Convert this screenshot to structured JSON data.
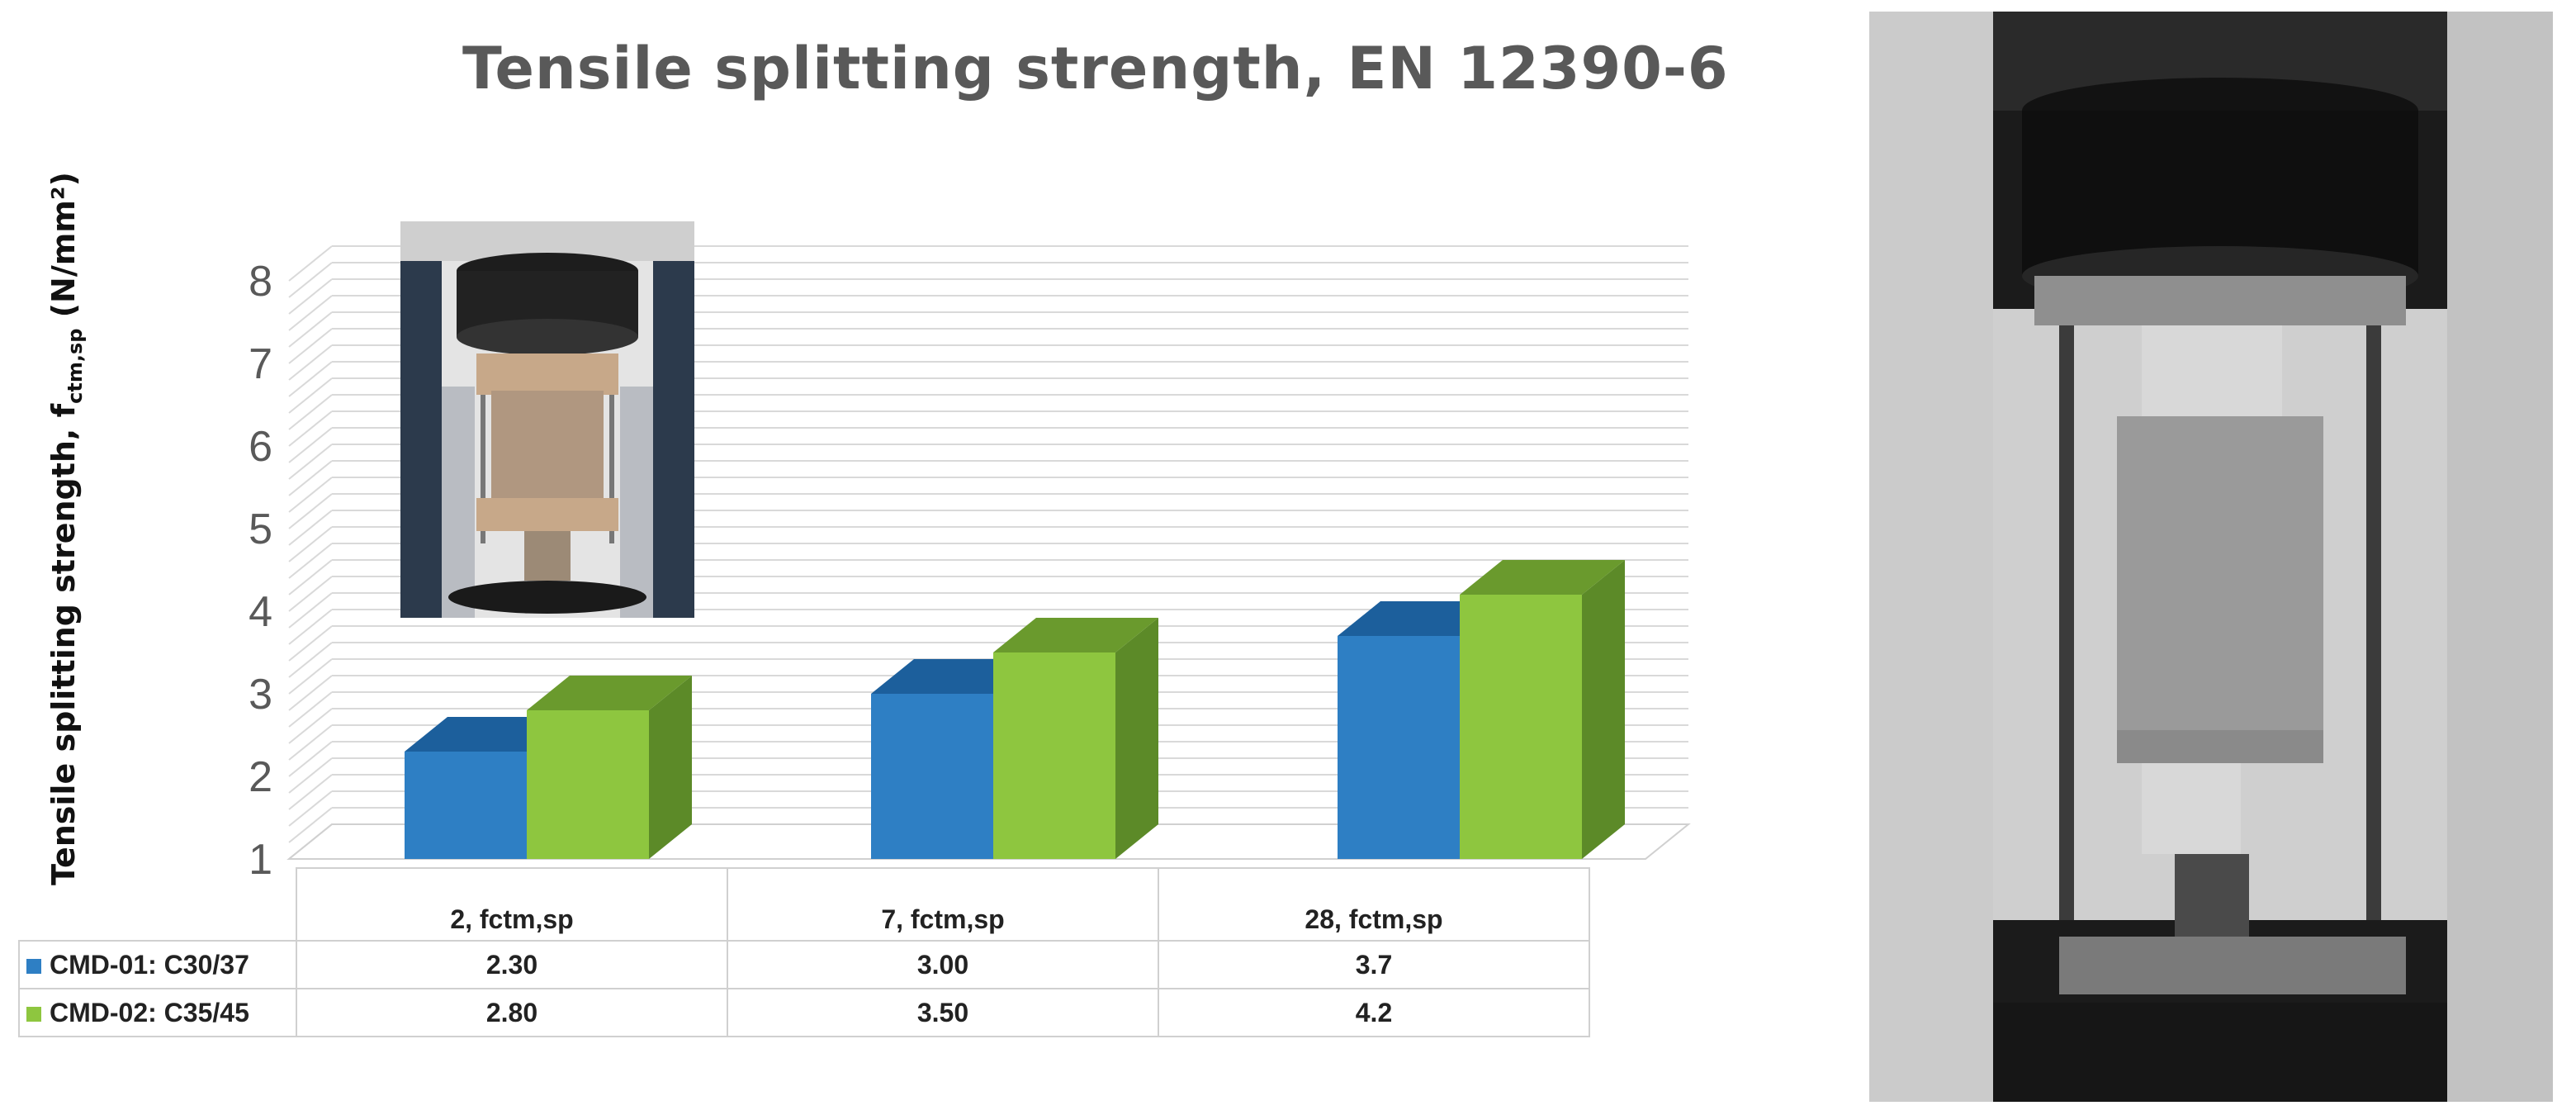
{
  "chart_data": {
    "type": "bar",
    "title": "Tensile splitting strength,  EN 12390-6",
    "ylabel_main": "Tensile splitting strength, f",
    "ylabel_sub": "ctm,sp",
    "ylabel_unit": " (N/mm²)",
    "ylim": [
      1,
      8
    ],
    "yticks": [
      "1",
      "2",
      "3",
      "4",
      "5",
      "6",
      "7",
      "8"
    ],
    "categories": [
      "2, fctm,sp",
      "7, fctm,sp",
      "28, fctm,sp"
    ],
    "series": [
      {
        "name": "CMD-01: C30/37",
        "values": [
          2.3,
          3.0,
          3.7
        ],
        "labels": [
          "2.30",
          "3.00",
          "3.7"
        ],
        "color": "#2e7fc4"
      },
      {
        "name": "CMD-02: C35/45",
        "values": [
          2.8,
          3.5,
          4.2
        ],
        "labels": [
          "2.80",
          "3.50",
          "4.2"
        ],
        "color": "#8ec63f"
      }
    ],
    "grid": true,
    "legend": "data-table"
  },
  "colors": {
    "blue_front": "#2e7fc4",
    "blue_top": "#1c5f9c",
    "blue_side": "#195690",
    "green_front": "#8ec63f",
    "green_top": "#6a9a2d",
    "green_side": "#5c8a28"
  }
}
